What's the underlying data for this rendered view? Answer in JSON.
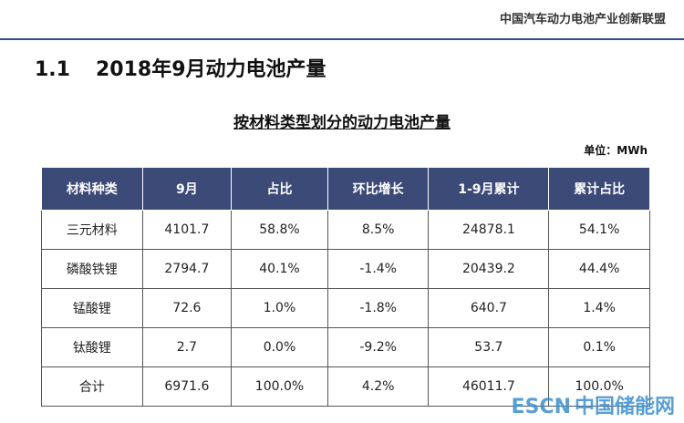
{
  "header": {
    "org": "中国汽车动力电池产业创新联盟"
  },
  "section": {
    "number": "1.1",
    "title": "2018年9月动力电池产量"
  },
  "table": {
    "title": "按材料类型划分的动力电池产量",
    "unit": "单位：MWh",
    "columns": [
      "材料种类",
      "9月",
      "占比",
      "环比增长",
      "1-9月累计",
      "累计占比"
    ],
    "rows": [
      [
        "三元材料",
        "4101.7",
        "58.8%",
        "8.5%",
        "24878.1",
        "54.1%"
      ],
      [
        "磷酸铁锂",
        "2794.7",
        "40.1%",
        "-1.4%",
        "20439.2",
        "44.4%"
      ],
      [
        "锰酸锂",
        "72.6",
        "1.0%",
        "-1.8%",
        "640.7",
        "1.4%"
      ],
      [
        "钛酸锂",
        "2.7",
        "0.0%",
        "-9.2%",
        "53.7",
        "0.1%"
      ],
      [
        "合计",
        "6971.6",
        "100.0%",
        "4.2%",
        "46011.7",
        "100.0%"
      ]
    ]
  },
  "watermark": {
    "brand": "ESCN",
    "name": "中国储能网"
  }
}
